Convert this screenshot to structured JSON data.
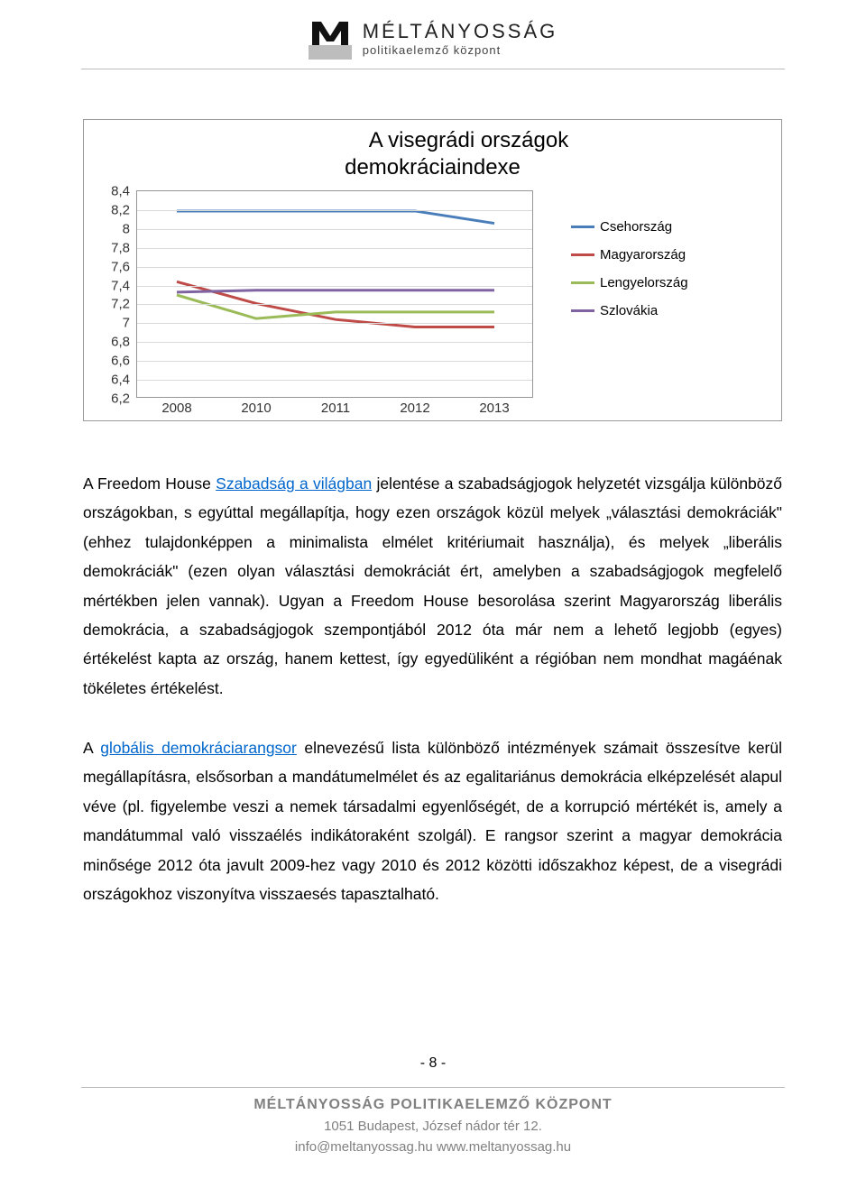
{
  "brand": {
    "name": "MÉLTÁNYOSSÁG",
    "sub": "politikaelemző központ"
  },
  "chart": {
    "type": "line",
    "title_l1": "A visegrádi országok",
    "title_l2": "demokráciaindexe",
    "title_fontsize": 24,
    "background_color": "#ffffff",
    "border_color": "#999999",
    "grid_color": "#d9d9d9",
    "label_fontsize": 15,
    "ylim": [
      6.2,
      8.4
    ],
    "ytick_step": 0.2,
    "yticks": [
      "8,4",
      "8,2",
      "8",
      "7,8",
      "7,6",
      "7,4",
      "7,2",
      "7",
      "6,8",
      "6,6",
      "6,4",
      "6,2"
    ],
    "x_categories": [
      "2008",
      "2010",
      "2011",
      "2012",
      "2013"
    ],
    "line_width": 3,
    "series": [
      {
        "name": "Csehország",
        "label": "Csehország",
        "color": "#4a7ebb",
        "values": [
          8.19,
          8.19,
          8.19,
          8.19,
          8.06
        ]
      },
      {
        "name": "Magyarország",
        "label": "Magyarország",
        "color": "#be4b48",
        "values": [
          7.44,
          7.21,
          7.04,
          6.96,
          6.96
        ]
      },
      {
        "name": "Lengyelország",
        "label": "Lengyelország",
        "color": "#9bbb59",
        "values": [
          7.3,
          7.05,
          7.12,
          7.12,
          7.12
        ]
      },
      {
        "name": "Szlovákia",
        "label": "Szlovákia",
        "color": "#8064a2",
        "values": [
          7.33,
          7.35,
          7.35,
          7.35,
          7.35
        ]
      }
    ]
  },
  "paragraphs": {
    "p1_a": "A Freedom House ",
    "p1_link": "Szabadság a világban",
    "p1_b": " jelentése a szabadságjogok helyzetét vizsgálja különböző országokban, s egyúttal megállapítja, hogy ezen országok közül melyek „választási demokráciák\" (ehhez tulajdonképpen a minimalista elmélet kritériumait használja), és melyek „liberális demokráciák\" (ezen olyan választási demokráciát ért, amelyben a szabadságjogok megfelelő mértékben jelen vannak). Ugyan a Freedom House besorolása szerint Magyarország liberális demokrácia, a szabadságjogok szempontjából 2012 óta már nem a lehető legjobb (egyes) értékelést kapta az ország, hanem kettest, így egyedüliként a régióban nem mondhat magáénak tökéletes értékelést.",
    "p2_a": "A ",
    "p2_link": "globális demokráciarangsor",
    "p2_b": " elnevezésű lista különböző intézmények számait összesítve kerül megállapításra, elsősorban a mandátumelmélet és az egalitariánus demokrácia elképzelését alapul véve (pl. figyelembe veszi a nemek társadalmi egyenlőségét, de a korrupció mértékét is, amely a mandátummal való visszaélés indikátoraként szolgál). E rangsor szerint a magyar demokrácia minősége 2012 óta javult 2009-hez vagy 2010 és 2012 közötti időszakhoz képest, de a visegrádi országokhoz viszonyítva visszaesés tapasztalható."
  },
  "page_number": "- 8 -",
  "footer": {
    "org_a": "MÉLTÁNYOSSÁG ",
    "org_b": "POLITIKAELEMZŐ ",
    "org_c": "KÖZPONT",
    "addr": "1051 Budapest, József nádor tér 12.",
    "contact": "info@meltanyossag.hu  www.meltanyossag.hu"
  },
  "link_color": "#0066cc"
}
